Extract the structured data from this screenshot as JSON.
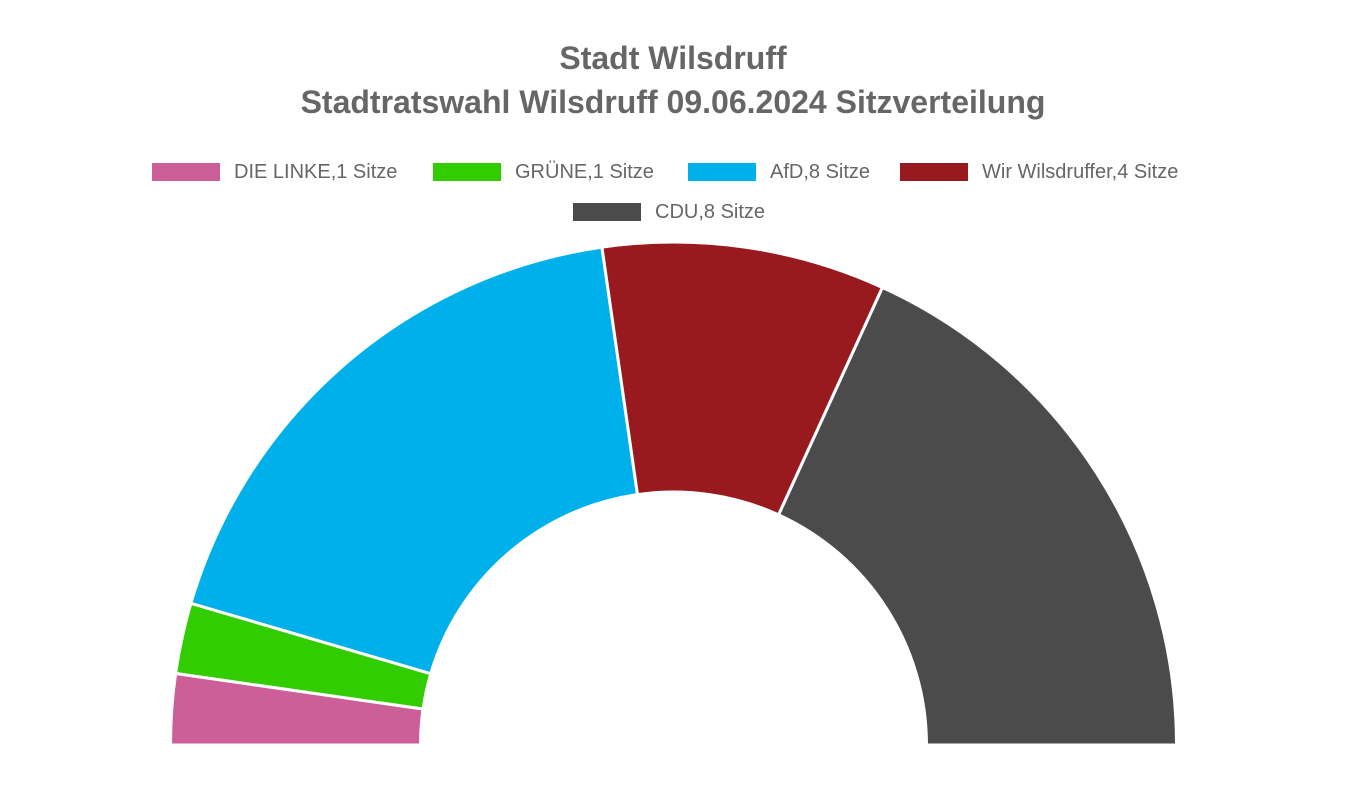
{
  "chart_data": {
    "type": "pie",
    "variant": "half-doughnut",
    "title": [
      "Stadt Wilsdruff",
      "Stadtratswahl Wilsdruff 09.06.2024 Sitzverteilung"
    ],
    "legend_position": "top",
    "slices": [
      {
        "name": "DIE LINKE",
        "value": 1,
        "label": "DIE LINKE,1 Sitze",
        "color": "#cd5f98"
      },
      {
        "name": "GRÜNE",
        "value": 1,
        "label": "GRÜNE,1 Sitze",
        "color": "#32cd00"
      },
      {
        "name": "AfD",
        "value": 8,
        "label": "AfD,8 Sitze",
        "color": "#00b0eb"
      },
      {
        "name": "Wir Wilsdruffer",
        "value": 4,
        "label": "Wir Wilsdruffer,4 Sitze",
        "color": "#981a1e"
      },
      {
        "name": "CDU",
        "value": 8,
        "label": "CDU,8 Sitze",
        "color": "#4b4b4b"
      }
    ]
  }
}
